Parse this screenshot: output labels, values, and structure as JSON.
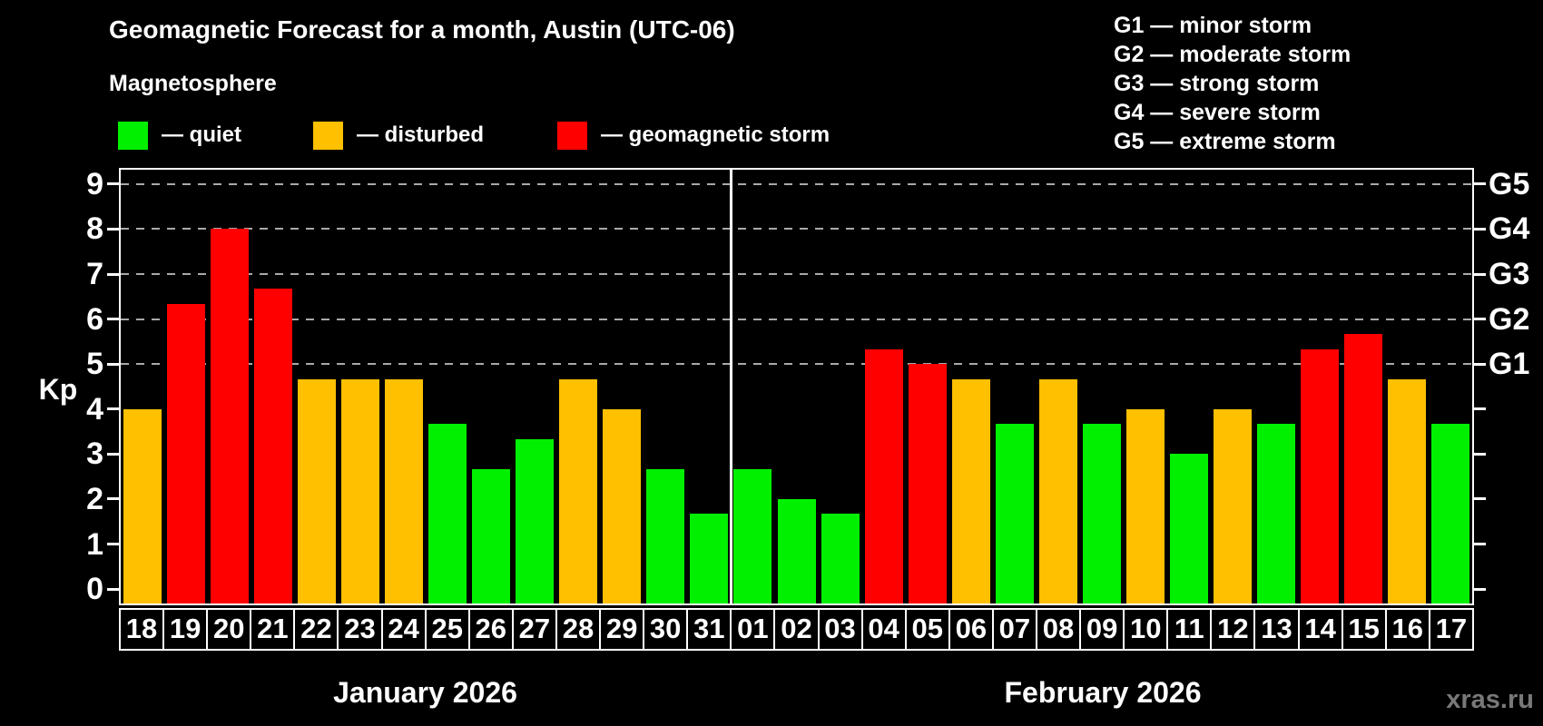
{
  "title": "Geomagnetic Forecast for a month, Austin (UTC-06)",
  "subtitle": "Magnetosphere",
  "legend": {
    "quiet_label": "— quiet",
    "disturbed_label": "— disturbed",
    "storm_label": "— geomagnetic storm"
  },
  "g_legend": [
    "G1 — minor storm",
    "G2 — moderate storm",
    "G3 — strong storm",
    "G4 — severe storm",
    "G5 — extreme storm"
  ],
  "axis": {
    "y_label": "Kp",
    "y_ticks": [
      0,
      1,
      2,
      3,
      4,
      5,
      6,
      7,
      8,
      9
    ],
    "g_labels": [
      {
        "kp": 5,
        "label": "G1"
      },
      {
        "kp": 6,
        "label": "G2"
      },
      {
        "kp": 7,
        "label": "G3"
      },
      {
        "kp": 8,
        "label": "G4"
      },
      {
        "kp": 9,
        "label": "G5"
      }
    ]
  },
  "months": [
    {
      "label": "January 2026",
      "days": [
        "18",
        "19",
        "20",
        "21",
        "22",
        "23",
        "24",
        "25",
        "26",
        "27",
        "28",
        "29",
        "30",
        "31"
      ]
    },
    {
      "label": "February 2026",
      "days": [
        "01",
        "02",
        "03",
        "04",
        "05",
        "06",
        "07",
        "08",
        "09",
        "10",
        "11",
        "12",
        "13",
        "14",
        "15",
        "16",
        "17"
      ]
    }
  ],
  "watermark": "xras.ru",
  "colors": {
    "quiet": "#00f000",
    "disturbed": "#ffc000",
    "storm": "#ff0000",
    "grid": "#a9a9a9",
    "axis": "#ffffff",
    "background": "#000000"
  },
  "chart_data": {
    "type": "bar",
    "title": "Geomagnetic Forecast for a month, Austin (UTC-06)",
    "xlabel": "",
    "ylabel": "Kp",
    "ylim": [
      0,
      9
    ],
    "grid_kp": [
      5,
      6,
      7,
      8,
      9
    ],
    "legend_position": "top",
    "categories": [
      "18",
      "19",
      "20",
      "21",
      "22",
      "23",
      "24",
      "25",
      "26",
      "27",
      "28",
      "29",
      "30",
      "31",
      "01",
      "02",
      "03",
      "04",
      "05",
      "06",
      "07",
      "08",
      "09",
      "10",
      "11",
      "12",
      "13",
      "14",
      "15",
      "16",
      "17"
    ],
    "values": [
      4.0,
      6.33,
      8.0,
      6.67,
      4.67,
      4.67,
      4.67,
      3.67,
      2.67,
      3.33,
      4.67,
      4.0,
      2.67,
      1.67,
      2.67,
      2.0,
      1.67,
      5.33,
      5.0,
      4.67,
      3.67,
      4.67,
      3.67,
      4.0,
      3.0,
      4.0,
      3.67,
      5.33,
      5.67,
      4.67,
      3.67
    ],
    "statuses": [
      "disturbed",
      "storm",
      "storm",
      "storm",
      "disturbed",
      "disturbed",
      "disturbed",
      "quiet",
      "quiet",
      "quiet",
      "disturbed",
      "disturbed",
      "quiet",
      "quiet",
      "quiet",
      "quiet",
      "quiet",
      "storm",
      "storm",
      "disturbed",
      "quiet",
      "disturbed",
      "quiet",
      "disturbed",
      "quiet",
      "disturbed",
      "quiet",
      "storm",
      "storm",
      "disturbed",
      "quiet"
    ]
  }
}
